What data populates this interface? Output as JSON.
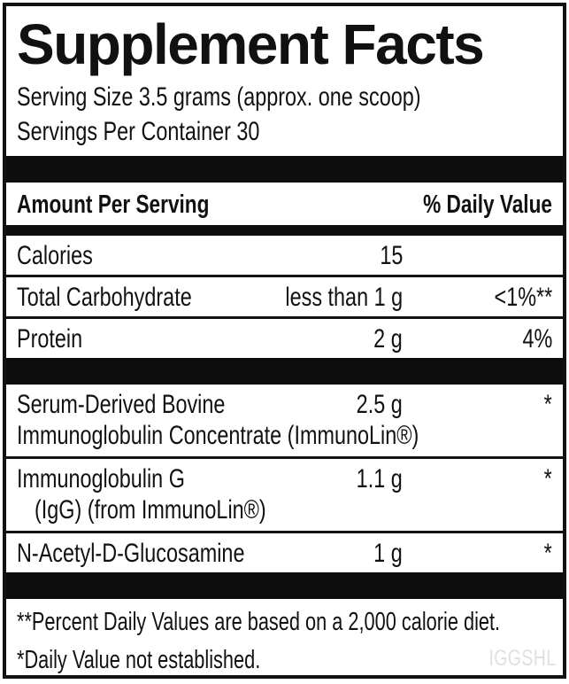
{
  "label": {
    "title": "Supplement Facts",
    "serving_size": "Serving Size 3.5 grams (approx. one scoop)",
    "servings_per_container": "Servings Per Container 30",
    "columns": {
      "amount_header": "Amount Per Serving",
      "daily_value_header": "% Daily Value"
    },
    "rows": [
      {
        "name": "Calories",
        "amount": "15",
        "dv": ""
      },
      {
        "name": "Total Carbohydrate",
        "amount": "less than 1 g",
        "dv": "<1%**"
      },
      {
        "name": "Protein",
        "amount": "2 g",
        "dv": "4%"
      },
      {
        "name": "Serum-Derived Bovine",
        "name_line2": "Immunoglobulin Concentrate (ImmunoLin®)",
        "amount": "2.5 g",
        "dv": "*"
      },
      {
        "name": "Immunoglobulin G",
        "name_line2": "(IgG) (from ImmunoLin®)",
        "amount": "1.1 g",
        "dv": "*"
      },
      {
        "name": "N-Acetyl-D-Glucosamine",
        "amount": "1 g",
        "dv": "*"
      }
    ],
    "footnotes": {
      "percent_daily_value": "**Percent Daily Values are based on a 2,000 calorie diet.",
      "daily_value_not_established": "*Daily Value not established."
    },
    "watermark": "IGGSHL",
    "colors": {
      "text": "#111111",
      "bar": "#0d0d0d",
      "border": "#121212",
      "background": "#ffffff",
      "watermark": "#e0e0e0"
    }
  }
}
